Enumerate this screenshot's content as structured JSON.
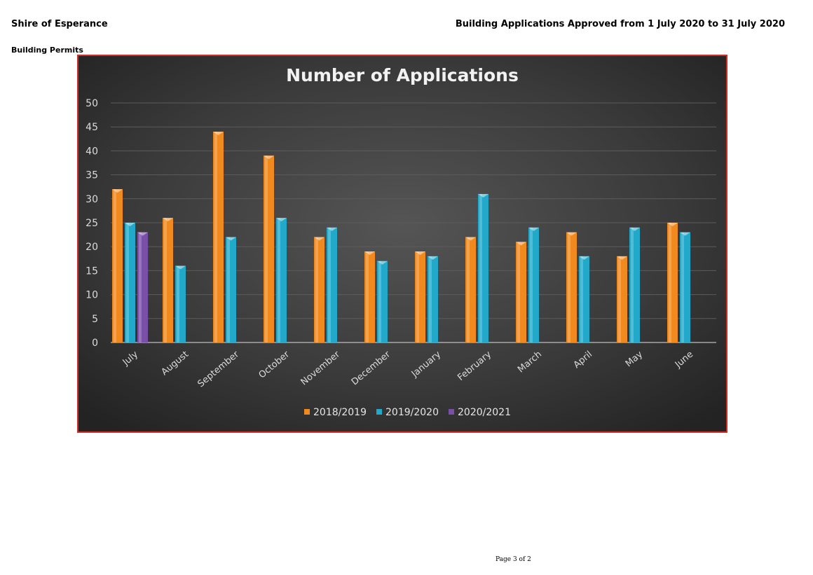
{
  "header": {
    "organisation": "Shire of Esperance",
    "report_title": "Building Applications Approved from 1 July 2020 to 31 July 2020",
    "section": "Building Permits"
  },
  "footer": {
    "page": "Page 3 of 2"
  },
  "chart_data": {
    "type": "bar",
    "title": "Number of Applications",
    "xlabel": "",
    "ylabel": "",
    "ylim": [
      0,
      50
    ],
    "yticks": [
      0,
      5,
      10,
      15,
      20,
      25,
      30,
      35,
      40,
      45,
      50
    ],
    "grid": true,
    "legend_position": "bottom",
    "categories": [
      "July",
      "August",
      "September",
      "October",
      "November",
      "December",
      "January",
      "February",
      "March",
      "April",
      "May",
      "June"
    ],
    "series": [
      {
        "name": "2018/2019",
        "color": "#f08a1e",
        "values": [
          32,
          26,
          44,
          39,
          22,
          19,
          19,
          22,
          21,
          23,
          18,
          25
        ]
      },
      {
        "name": "2019/2020",
        "color": "#22a9c9",
        "values": [
          25,
          16,
          22,
          26,
          24,
          17,
          18,
          31,
          24,
          18,
          24,
          23
        ]
      },
      {
        "name": "2020/2021",
        "color": "#7a4fa8",
        "values": [
          23,
          null,
          null,
          null,
          null,
          null,
          null,
          null,
          null,
          null,
          null,
          null
        ]
      }
    ]
  }
}
